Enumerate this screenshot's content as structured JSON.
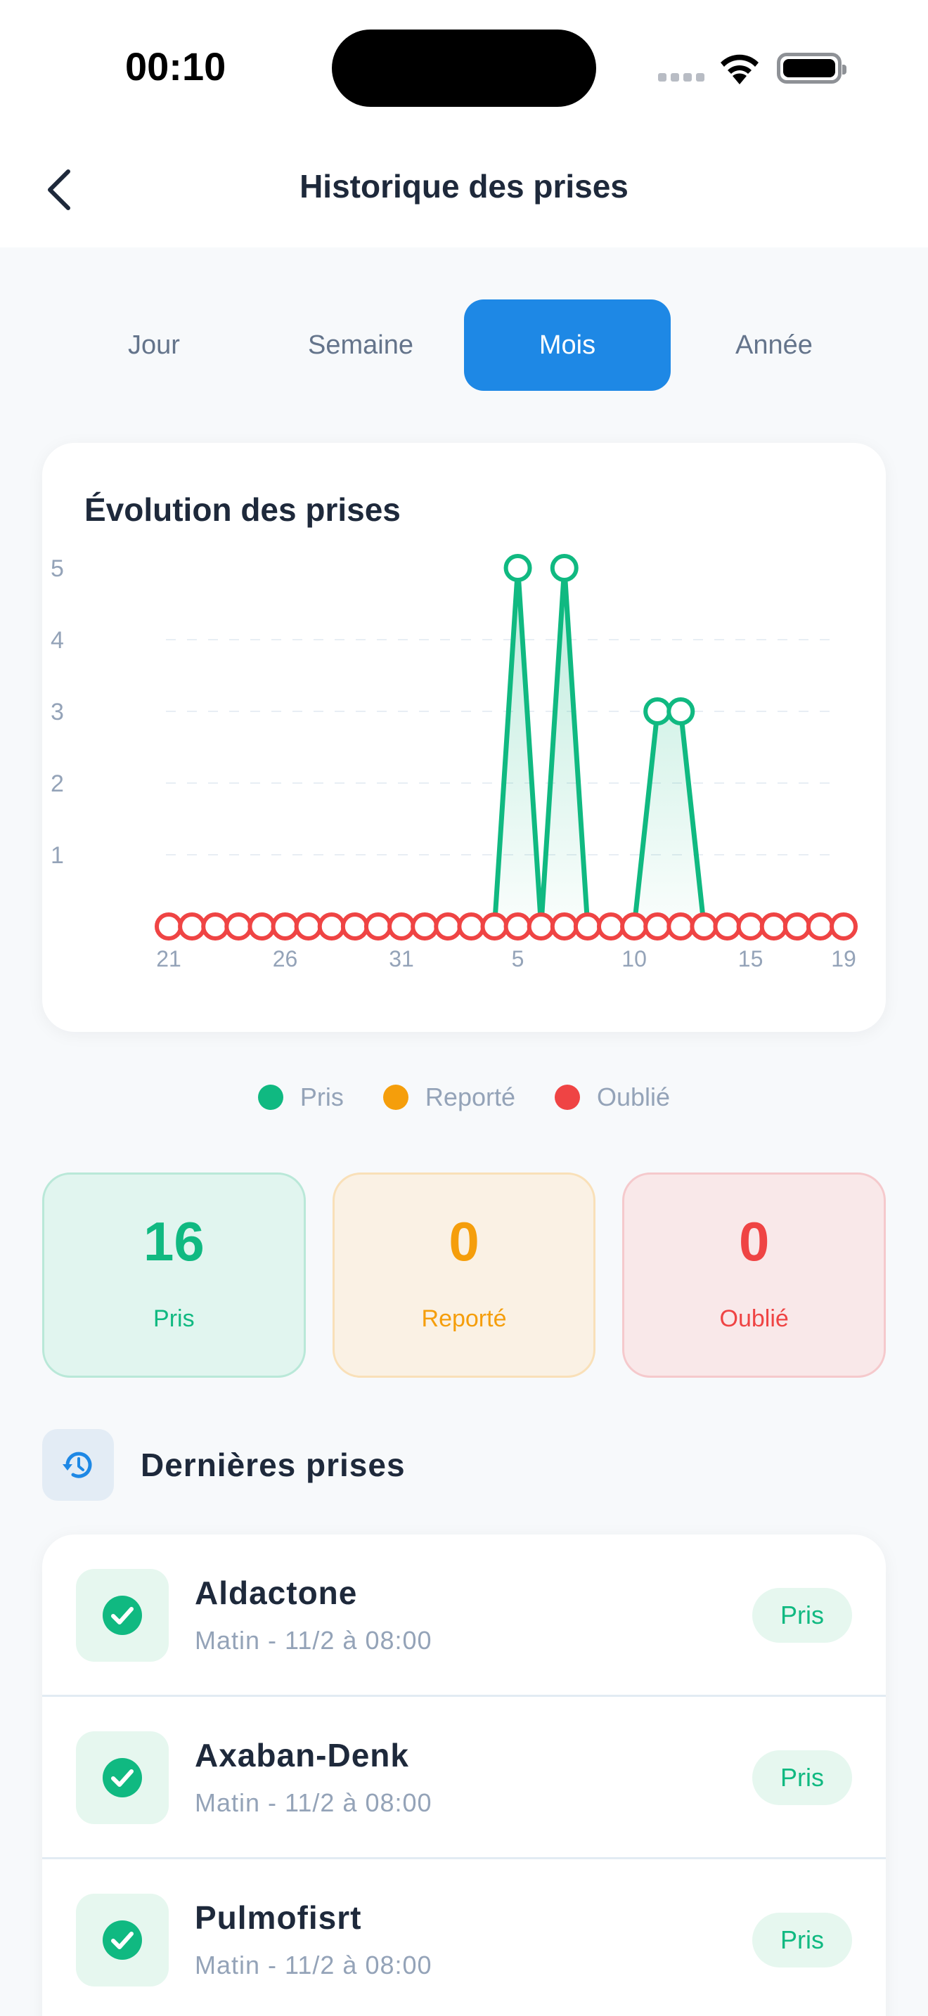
{
  "status_bar": {
    "time": "00:10",
    "icons": [
      "cellular-signal-icon",
      "wifi-icon",
      "battery-icon"
    ]
  },
  "header": {
    "title": "Historique des prises",
    "back_icon": "chevron-left-icon"
  },
  "tabs": [
    {
      "label": "Jour",
      "active": false
    },
    {
      "label": "Semaine",
      "active": false
    },
    {
      "label": "Mois",
      "active": true
    },
    {
      "label": "Année",
      "active": false
    }
  ],
  "chart_card": {
    "title": "Évolution des prises"
  },
  "chart_data": {
    "type": "line",
    "title": "Évolution des prises",
    "xlabel": "",
    "ylabel": "",
    "ylim": [
      0,
      5
    ],
    "yticks": [
      1,
      2,
      3,
      4,
      5
    ],
    "grid": true,
    "x": [
      "21",
      "22",
      "23",
      "24",
      "25",
      "26",
      "27",
      "28",
      "29",
      "30",
      "31",
      "1",
      "2",
      "3",
      "4",
      "5",
      "6",
      "7",
      "8",
      "9",
      "10",
      "11",
      "12",
      "13",
      "14",
      "15",
      "16",
      "17",
      "18",
      "19"
    ],
    "xtick_labels": [
      "21",
      "26",
      "31",
      "5",
      "10",
      "15",
      "19"
    ],
    "series": [
      {
        "name": "Pris",
        "color": "#10b981",
        "values": [
          0,
          0,
          0,
          0,
          0,
          0,
          0,
          0,
          0,
          0,
          0,
          0,
          0,
          0,
          0,
          5,
          0,
          5,
          0,
          0,
          0,
          3,
          3,
          0,
          0,
          0,
          0,
          0,
          0,
          0
        ]
      },
      {
        "name": "Reporté",
        "color": "#f59e0b",
        "values": [
          0,
          0,
          0,
          0,
          0,
          0,
          0,
          0,
          0,
          0,
          0,
          0,
          0,
          0,
          0,
          0,
          0,
          0,
          0,
          0,
          0,
          0,
          0,
          0,
          0,
          0,
          0,
          0,
          0,
          0
        ]
      },
      {
        "name": "Oublié",
        "color": "#ef4444",
        "values": [
          0,
          0,
          0,
          0,
          0,
          0,
          0,
          0,
          0,
          0,
          0,
          0,
          0,
          0,
          0,
          0,
          0,
          0,
          0,
          0,
          0,
          0,
          0,
          0,
          0,
          0,
          0,
          0,
          0,
          0
        ]
      }
    ],
    "legend_position": "bottom"
  },
  "legend": [
    {
      "label": "Pris",
      "color": "#10b981"
    },
    {
      "label": "Reporté",
      "color": "#f59e0b"
    },
    {
      "label": "Oublié",
      "color": "#ef4444"
    }
  ],
  "stats": [
    {
      "value": "16",
      "label": "Pris",
      "color": "#10b981",
      "bg": "#e1f5ef",
      "border": "#b9e8d8"
    },
    {
      "value": "0",
      "label": "Reporté",
      "color": "#f59e0b",
      "bg": "#faf1e4",
      "border": "#f9e0b8"
    },
    {
      "value": "0",
      "label": "Oublié",
      "color": "#ef4444",
      "bg": "#f9e8e9",
      "border": "#f5c9cc"
    }
  ],
  "recent": {
    "title": "Dernières prises",
    "icon": "history-icon",
    "items": [
      {
        "name": "Aldactone",
        "subtitle": "Matin - 11/2 à 08:00",
        "status": "Pris"
      },
      {
        "name": "Axaban-Denk",
        "subtitle": "Matin - 11/2 à 08:00",
        "status": "Pris"
      },
      {
        "name": "Pulmofisrt",
        "subtitle": "Matin - 11/2 à 08:00",
        "status": "Pris"
      }
    ]
  }
}
